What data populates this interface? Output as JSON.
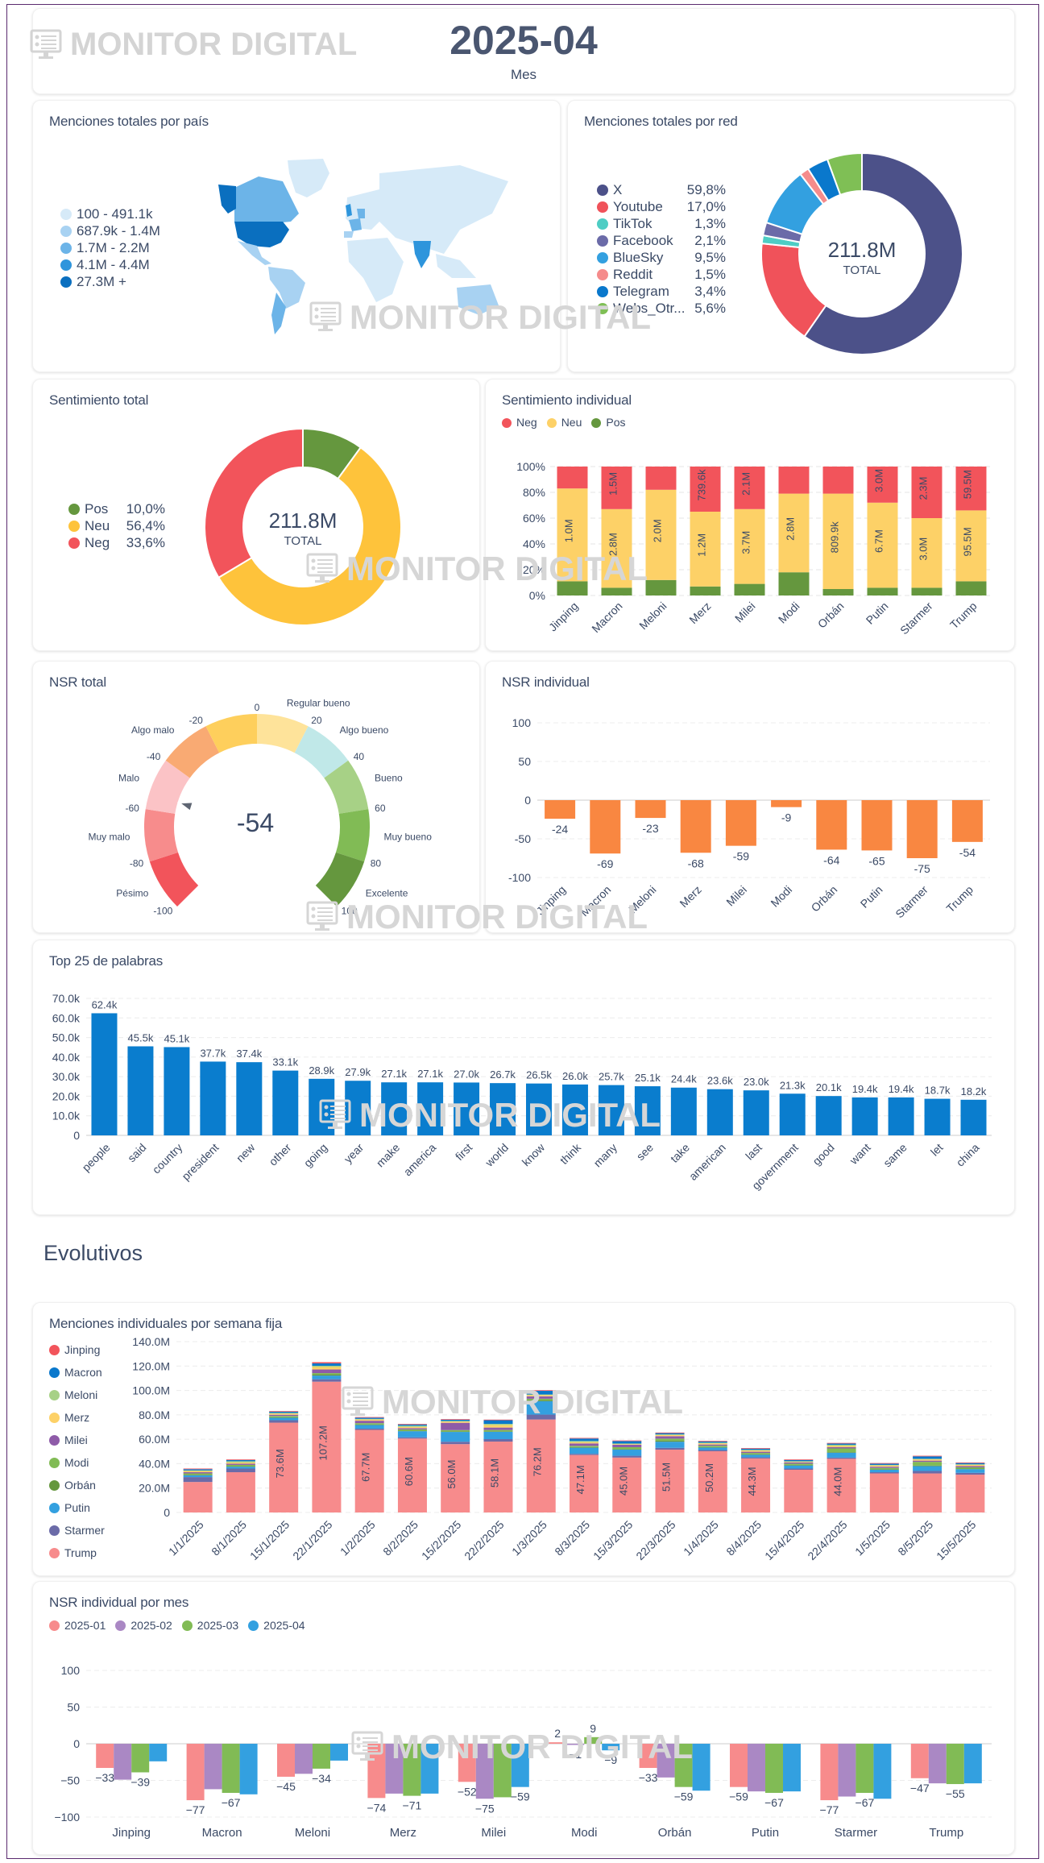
{
  "header": {
    "brand": "MONITOR DIGITAL",
    "period": "2025-04",
    "period_label": "Mes"
  },
  "watermark": "MONITOR DIGITAL",
  "map_card": {
    "title": "Menciones totales por país",
    "legend": [
      {
        "label": "100 - 491.1k",
        "color": "#d6eaf8"
      },
      {
        "label": "687.9k - 1.4M",
        "color": "#a8d2f2"
      },
      {
        "label": "1.7M - 2.2M",
        "color": "#6cb4e8"
      },
      {
        "label": "4.1M - 4.4M",
        "color": "#2e95dc"
      },
      {
        "label": "27.3M +",
        "color": "#0a6fbf"
      }
    ]
  },
  "network_card": {
    "title": "Menciones totales por red",
    "center_value": "211.8M",
    "center_label": "TOTAL"
  },
  "sentiment_total_card": {
    "title": "Sentimiento total",
    "center_value": "211.8M",
    "center_label": "TOTAL"
  },
  "sentiment_individual_card": {
    "title": "Sentimiento individual"
  },
  "nsr_total_card": {
    "title": "NSR total",
    "value_label": "-54"
  },
  "nsr_individual_card": {
    "title": "NSR individual"
  },
  "words_card": {
    "title": "Top 25 de palabras"
  },
  "section": {
    "title": "Evolutivos"
  },
  "weekly_card": {
    "title": "Menciones individuales por semana fija"
  },
  "nsr_month_card": {
    "title": "NSR individual por mes"
  },
  "chart_data": [
    {
      "id": "networks",
      "type": "pie",
      "title": "Menciones totales por red",
      "total": "211.8M",
      "labels": [
        "X",
        "Youtube",
        "TikTok",
        "Facebook",
        "BlueSky",
        "Reddit",
        "Telegram",
        "Webs_Otr..."
      ],
      "values": [
        59.8,
        17.0,
        1.3,
        2.1,
        9.5,
        1.5,
        3.4,
        5.6
      ],
      "value_labels": [
        "59,8%",
        "17,0%",
        "1,3%",
        "2,1%",
        "9,5%",
        "1,5%",
        "3,4%",
        "5,6%"
      ],
      "colors": [
        "#4c5189",
        "#f0525a",
        "#4ecdc4",
        "#6b6ba8",
        "#33a0e0",
        "#f58b8b",
        "#0a78cc",
        "#7fbf55"
      ],
      "legend": "left"
    },
    {
      "id": "sentiment_total",
      "type": "pie",
      "title": "Sentimiento total",
      "total": "211.8M",
      "labels": [
        "Pos",
        "Neu",
        "Neg"
      ],
      "values": [
        10.0,
        56.4,
        33.6
      ],
      "value_labels": [
        "10,0%",
        "56,4%",
        "33,6%"
      ],
      "colors": [
        "#65973e",
        "#fec33b",
        "#f2545b"
      ],
      "legend": "left"
    },
    {
      "id": "sentiment_individual",
      "type": "bar",
      "stacked": "percent",
      "title": "Sentimiento individual",
      "categories": [
        "Jinping",
        "Macron",
        "Meloni",
        "Merz",
        "Milei",
        "Modi",
        "Orbán",
        "Putin",
        "Starmer",
        "Trump"
      ],
      "series": [
        {
          "name": "Pos",
          "color": "#65973e",
          "values": [
            11,
            6,
            12,
            7,
            9,
            18,
            5,
            6,
            6,
            11
          ]
        },
        {
          "name": "Neu",
          "color": "#fdd167",
          "values": [
            72,
            61,
            70,
            58,
            58,
            61,
            74,
            66,
            54,
            55
          ]
        },
        {
          "name": "Neg",
          "color": "#f2545b",
          "values": [
            17,
            33,
            18,
            35,
            33,
            21,
            21,
            28,
            40,
            34
          ]
        }
      ],
      "data_labels": {
        "Neu": [
          "1.0M",
          "2.8M",
          "2.0M",
          "1.2M",
          "3.7M",
          "2.8M",
          "809.9k",
          "6.7M",
          "3.0M",
          "95.5M"
        ],
        "Neg": [
          "",
          "1.5M",
          "",
          "739.6k",
          "2.1M",
          "",
          "",
          "3.0M",
          "2.3M",
          "59.5M"
        ]
      },
      "yticks": [
        "0%",
        "20%",
        "40%",
        "60%",
        "80%",
        "100%"
      ],
      "ylim": [
        0,
        100
      ],
      "legend": "top-left"
    },
    {
      "id": "nsr_gauge",
      "type": "gauge",
      "title": "NSR total",
      "value": -54,
      "range": [
        -100,
        100
      ],
      "ticks": [
        -100,
        -80,
        -60,
        -40,
        -20,
        0,
        20,
        40,
        60,
        80,
        100
      ],
      "bands": [
        {
          "label": "Pésimo",
          "from": -100,
          "to": -80,
          "color": "#f2545b"
        },
        {
          "label": "Muy malo",
          "from": -80,
          "to": -60,
          "color": "#f78c8c"
        },
        {
          "label": "Malo",
          "from": -60,
          "to": -40,
          "color": "#fbc3c6"
        },
        {
          "label": "Algo malo",
          "from": -40,
          "to": -20,
          "color": "#f9aa73"
        },
        {
          "label": "",
          "from": -20,
          "to": 0,
          "color": "#fecf5c"
        },
        {
          "label": "Regular bueno",
          "from": 0,
          "to": 20,
          "color": "#fee39a"
        },
        {
          "label": "Algo bueno",
          "from": 20,
          "to": 40,
          "color": "#c0e8e8"
        },
        {
          "label": "Bueno",
          "from": 40,
          "to": 60,
          "color": "#a7d186"
        },
        {
          "label": "Muy bueno",
          "from": 60,
          "to": 80,
          "color": "#81bb55"
        },
        {
          "label": "Excelente",
          "from": 80,
          "to": 100,
          "color": "#65973e"
        }
      ]
    },
    {
      "id": "nsr_individual",
      "type": "bar",
      "title": "NSR individual",
      "categories": [
        "Jinping",
        "Macron",
        "Meloni",
        "Merz",
        "Milei",
        "Modi",
        "Orbán",
        "Putin",
        "Starmer",
        "Trump"
      ],
      "values": [
        -24,
        -69,
        -23,
        -68,
        -59,
        -9,
        -64,
        -65,
        -75,
        -54
      ],
      "color": "#f98741",
      "yticks": [
        -100,
        -50,
        0,
        50,
        100
      ],
      "ylim": [
        -100,
        100
      ]
    },
    {
      "id": "top_words",
      "type": "bar",
      "title": "Top 25 de palabras",
      "categories": [
        "people",
        "said",
        "country",
        "president",
        "new",
        "other",
        "going",
        "year",
        "make",
        "america",
        "first",
        "world",
        "know",
        "think",
        "many",
        "see",
        "take",
        "american",
        "last",
        "government",
        "good",
        "want",
        "same",
        "let",
        "china"
      ],
      "values": [
        62.4,
        45.5,
        45.1,
        37.7,
        37.4,
        33.1,
        28.9,
        27.9,
        27.1,
        27.1,
        27.0,
        26.7,
        26.5,
        26.0,
        25.7,
        25.1,
        24.4,
        23.6,
        23.0,
        21.3,
        20.1,
        19.4,
        19.4,
        18.7,
        18.2
      ],
      "value_labels": [
        "62.4k",
        "45.5k",
        "45.1k",
        "37.7k",
        "37.4k",
        "33.1k",
        "28.9k",
        "27.9k",
        "27.1k",
        "27.1k",
        "27.0k",
        "26.7k",
        "26.5k",
        "26.0k",
        "25.7k",
        "25.1k",
        "24.4k",
        "23.6k",
        "23.0k",
        "21.3k",
        "20.1k",
        "19.4k",
        "19.4k",
        "18.7k",
        "18.2k"
      ],
      "unit": "k",
      "color": "#0a7dce",
      "yticks": [
        "0",
        "10.0k",
        "20.0k",
        "30.0k",
        "40.0k",
        "50.0k",
        "60.0k",
        "70.0k"
      ],
      "ylim": [
        0,
        70
      ]
    },
    {
      "id": "weekly_mentions",
      "type": "bar",
      "stacked": "normal",
      "title": "Menciones individuales por semana fija",
      "categories": [
        "1/1/2025",
        "8/1/2025",
        "15/1/2025",
        "22/1/2025",
        "1/2/2025",
        "8/2/2025",
        "15/2/2025",
        "22/2/2025",
        "1/3/2025",
        "8/3/2025",
        "15/3/2025",
        "22/3/2025",
        "1/4/2025",
        "8/4/2025",
        "15/4/2025",
        "22/4/2025",
        "1/5/2025",
        "8/5/2025",
        "15/5/2025"
      ],
      "series": [
        {
          "name": "Trump",
          "color": "#f78b8c",
          "values": [
            25,
            33,
            73.6,
            107.2,
            67.7,
            60.6,
            56.0,
            58.1,
            76.2,
            47.1,
            45.0,
            51.5,
            50.2,
            44.3,
            35,
            44.0,
            32,
            32,
            31
          ]
        },
        {
          "name": "Starmer",
          "color": "#6b6ba8",
          "values": [
            4,
            3,
            2,
            2,
            1,
            1,
            2,
            2,
            4,
            1,
            1.5,
            1.5,
            1,
            1,
            1,
            1,
            1,
            2,
            1.5
          ]
        },
        {
          "name": "Putin",
          "color": "#33a0e0",
          "values": [
            1.5,
            1.5,
            2,
            3,
            3,
            5,
            8,
            6,
            11,
            5,
            5,
            5,
            2,
            2,
            2.5,
            4,
            2,
            4,
            3
          ]
        },
        {
          "name": "Orbán",
          "color": "#65973e",
          "values": [
            0.5,
            0.5,
            0.5,
            1,
            0.5,
            0.5,
            0.5,
            0.5,
            1,
            0.5,
            0.5,
            1,
            0.5,
            0.5,
            0.5,
            0.5,
            0.5,
            0.5,
            0.5
          ]
        },
        {
          "name": "Modi",
          "color": "#81bb55",
          "values": [
            1,
            1,
            1,
            1,
            1,
            1,
            1,
            1,
            1,
            1,
            1.5,
            1.5,
            1,
            1,
            1,
            3,
            1,
            3,
            1
          ]
        },
        {
          "name": "Milei",
          "color": "#8e5ba8",
          "values": [
            1,
            1,
            1,
            3,
            2,
            1,
            6,
            2,
            2,
            2,
            2,
            2,
            1,
            1,
            1,
            1,
            1,
            1,
            1
          ]
        },
        {
          "name": "Merz",
          "color": "#fdd167",
          "values": [
            1,
            1,
            1,
            2,
            1,
            1,
            1,
            2,
            1,
            1,
            0.5,
            1,
            1,
            1,
            0.5,
            1,
            1,
            1,
            1
          ]
        },
        {
          "name": "Meloni",
          "color": "#a7d186",
          "values": [
            0.5,
            1,
            0.5,
            1,
            0.5,
            1,
            0.5,
            1,
            0.5,
            1,
            0.5,
            0.5,
            0.5,
            0.5,
            0.5,
            1,
            0.5,
            0.5,
            0.5
          ]
        },
        {
          "name": "Macron",
          "color": "#0a78cc",
          "values": [
            1,
            1,
            1,
            2,
            1,
            1,
            1,
            3,
            3,
            2,
            2,
            1,
            1,
            1,
            1,
            1,
            1,
            2,
            1
          ]
        },
        {
          "name": "Jinping",
          "color": "#f2545b",
          "values": [
            0.5,
            0.5,
            0.5,
            1,
            0.5,
            0.5,
            0.5,
            0.5,
            0.5,
            0.5,
            0.5,
            0.5,
            0.5,
            0.5,
            0.5,
            0.5,
            0.5,
            0.5,
            0.5
          ]
        }
      ],
      "data_labels": [
        "",
        "",
        "73.6M",
        "107.2M",
        "67.7M",
        "60.6M",
        "56.0M",
        "58.1M",
        "76.2M",
        "47.1M",
        "45.0M",
        "51.5M",
        "50.2M",
        "44.3M",
        "",
        "44.0M",
        "",
        "",
        ""
      ],
      "unit": "M",
      "yticks": [
        "0",
        "20.0M",
        "40.0M",
        "60.0M",
        "80.0M",
        "100.0M",
        "120.0M",
        "140.0M"
      ],
      "ylim": [
        0,
        140
      ],
      "legend_order": [
        "Jinping",
        "Macron",
        "Meloni",
        "Merz",
        "Milei",
        "Modi",
        "Orbán",
        "Putin",
        "Starmer",
        "Trump"
      ],
      "legend": "left"
    },
    {
      "id": "nsr_by_month",
      "type": "bar",
      "title": "NSR individual por mes",
      "categories": [
        "Jinping",
        "Macron",
        "Meloni",
        "Merz",
        "Milei",
        "Modi",
        "Orbán",
        "Putin",
        "Starmer",
        "Trump"
      ],
      "series": [
        {
          "name": "2025-01",
          "color": "#f78b8c",
          "values": [
            -33,
            -77,
            -45,
            -74,
            -52,
            2,
            -33,
            -59,
            -77,
            -47
          ]
        },
        {
          "name": "2025-02",
          "color": "#aa88c4",
          "values": [
            -49,
            -62,
            -41,
            -68,
            -75,
            -1,
            -46,
            -65,
            -72,
            -54
          ]
        },
        {
          "name": "2025-03",
          "color": "#81bb55",
          "values": [
            -39,
            -67,
            -34,
            -71,
            -73,
            9,
            -59,
            -67,
            -67,
            -55
          ]
        },
        {
          "name": "2025-04",
          "color": "#33a0e0",
          "values": [
            -24,
            -69,
            -23,
            -68,
            -59,
            -9,
            -64,
            -65,
            -75,
            -54
          ]
        }
      ],
      "data_labels": {
        "2025-01": [
          "−33",
          "−77",
          "−45",
          "−74",
          "−52",
          "2",
          "−33",
          "−59",
          "−77",
          "−47"
        ],
        "2025-03": [
          "−39",
          "−67",
          "−34",
          "−71",
          "",
          "9",
          "−59",
          "−67",
          "−67",
          "−55"
        ],
        "2025-02": [
          "",
          "",
          "",
          "",
          "−75",
          "−1",
          "",
          "",
          "",
          ""
        ],
        "2025-04": [
          "",
          "",
          "",
          "",
          "−59",
          "−9",
          "",
          "",
          "",
          ""
        ]
      },
      "yticks": [
        "−100",
        "−50",
        "0",
        "50",
        "100"
      ],
      "ylim": [
        -100,
        100
      ],
      "legend": "top-left"
    }
  ]
}
